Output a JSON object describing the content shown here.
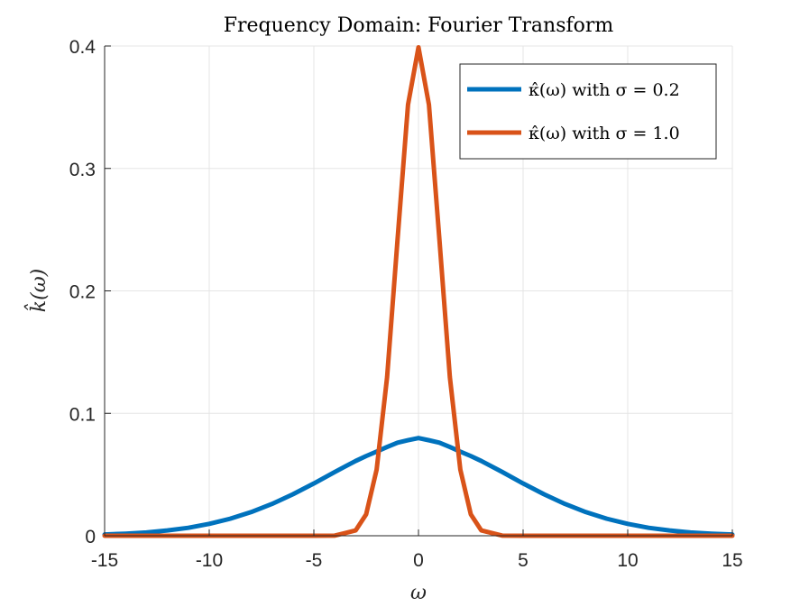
{
  "chart_data": {
    "type": "line",
    "title": "Frequency Domain: Fourier Transform",
    "xlabel": "ω",
    "ylabel": "k̂(ω)",
    "xlim": [
      -15,
      15
    ],
    "ylim": [
      0,
      0.4
    ],
    "x_ticks": [
      -15,
      -10,
      -5,
      0,
      5,
      10,
      15
    ],
    "y_ticks": [
      0,
      0.1,
      0.2,
      0.3,
      0.4
    ],
    "x_tick_labels": [
      "-15",
      "-10",
      "-5",
      "0",
      "5",
      "10",
      "15"
    ],
    "y_tick_labels": [
      "0",
      "0.1",
      "0.2",
      "0.3",
      "0.4"
    ],
    "grid": true,
    "legend_position": "top-right",
    "x": [
      -15,
      -14,
      -13,
      -12,
      -11,
      -10,
      -9,
      -8,
      -7,
      -6,
      -5,
      -4,
      -3,
      -2.5,
      -2,
      -1.5,
      -1,
      -0.5,
      0,
      0.5,
      1,
      1.5,
      2,
      2.5,
      3,
      4,
      5,
      6,
      7,
      8,
      9,
      10,
      11,
      12,
      13,
      14,
      15
    ],
    "series": [
      {
        "name": "κ̂(ω) with σ = 0.2",
        "color": "#0072BD",
        "values": [
          0.001,
          0.0017,
          0.0027,
          0.0043,
          0.0065,
          0.0097,
          0.0139,
          0.0193,
          0.026,
          0.0339,
          0.0427,
          0.0521,
          0.0611,
          0.0651,
          0.0687,
          0.0725,
          0.076,
          0.078,
          0.0798,
          0.078,
          0.076,
          0.0725,
          0.0687,
          0.0651,
          0.0611,
          0.0521,
          0.0427,
          0.0339,
          0.026,
          0.0193,
          0.0139,
          0.0097,
          0.0065,
          0.0043,
          0.0027,
          0.0017,
          0.001
        ]
      },
      {
        "name": "κ̂(ω) with σ = 1.0",
        "color": "#D95319",
        "values": [
          0,
          0,
          0,
          0,
          0,
          0,
          0,
          0,
          0,
          0,
          0,
          0.0001,
          0.0044,
          0.0175,
          0.054,
          0.1295,
          0.242,
          0.3521,
          0.3989,
          0.3521,
          0.242,
          0.1295,
          0.054,
          0.0175,
          0.0044,
          0.0001,
          0,
          0,
          0,
          0,
          0,
          0,
          0,
          0,
          0,
          0,
          0
        ]
      }
    ]
  }
}
